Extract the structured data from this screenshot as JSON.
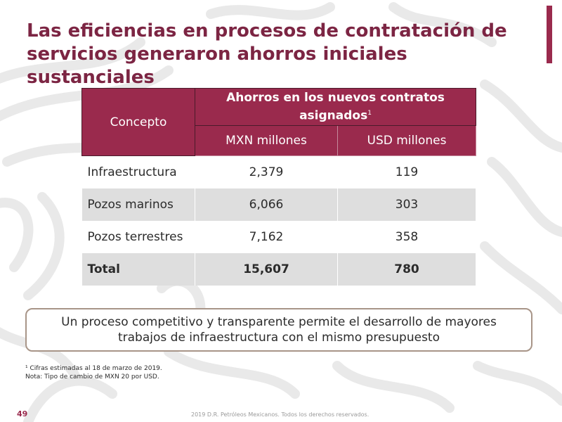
{
  "title": {
    "line1": "Las eficiencias en procesos de contratación de",
    "line2": "servicios generaron ahorros iniciales sustanciales"
  },
  "table": {
    "header": {
      "concepto": "Concepto",
      "group": "Ahorros en los nuevos contratos asignados",
      "group_footnote_mark": "1",
      "mxn": "MXN millones",
      "usd": "USD millones"
    },
    "rows": [
      {
        "concept": "Infraestructura",
        "mxn": "2,379",
        "usd": "119"
      },
      {
        "concept": "Pozos marinos",
        "mxn": "6,066",
        "usd": "303"
      },
      {
        "concept": "Pozos terrestres",
        "mxn": "7,162",
        "usd": "358"
      }
    ],
    "total": {
      "concept": "Total",
      "mxn": "15,607",
      "usd": "780"
    }
  },
  "callout": {
    "line1": "Un proceso competitivo y transparente permite el desarrollo de mayores",
    "line2": "trabajos de infraestructura con el mismo presupuesto"
  },
  "footnotes": {
    "note1": "¹ Cifras estimadas al 18 de marzo de 2019.",
    "note2": "Nota: Tipo de cambio de MXN 20 por USD."
  },
  "footer": {
    "page_number": "49",
    "copyright": "2019 D.R. Petróleos Mexicanos. Todos los derechos reservados."
  },
  "colors": {
    "accent": "#9a2a4d",
    "title": "#7c2543",
    "row_shade": "#dedede",
    "callout_border": "#a89588"
  }
}
